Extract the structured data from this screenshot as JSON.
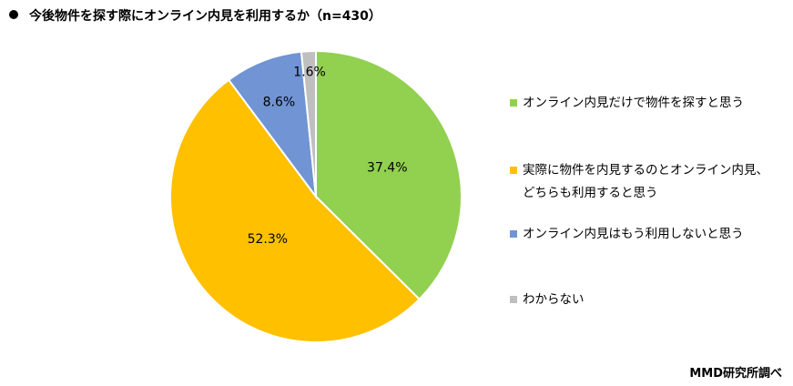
{
  "chart_data": {
    "type": "pie",
    "title": "今後物件を探す際にオンライン内見を利用するか（n=430）",
    "slices": [
      {
        "label": "オンライン内見だけで物件を探すと思う",
        "value": 37.4,
        "display": "37.4%",
        "color": "#92D050"
      },
      {
        "label": "実際に物件を内見するのとオンライン内見、どちらも利用すると思う",
        "label_lines": [
          "実際に物件を内見するのとオンライン内見、",
          "どちらも利用すると思う"
        ],
        "value": 52.3,
        "display": "52.3%",
        "color": "#FFC000"
      },
      {
        "label": "オンライン内見はもう利用しないと思う",
        "value": 8.6,
        "display": "8.6%",
        "color": "#7094D4"
      },
      {
        "label": "わからない",
        "value": 1.6,
        "display": "1.6%",
        "color": "#BFBFBF"
      }
    ],
    "start": "top",
    "direction": "clockwise",
    "legend_position": "right"
  },
  "source": "MMD研究所調べ"
}
